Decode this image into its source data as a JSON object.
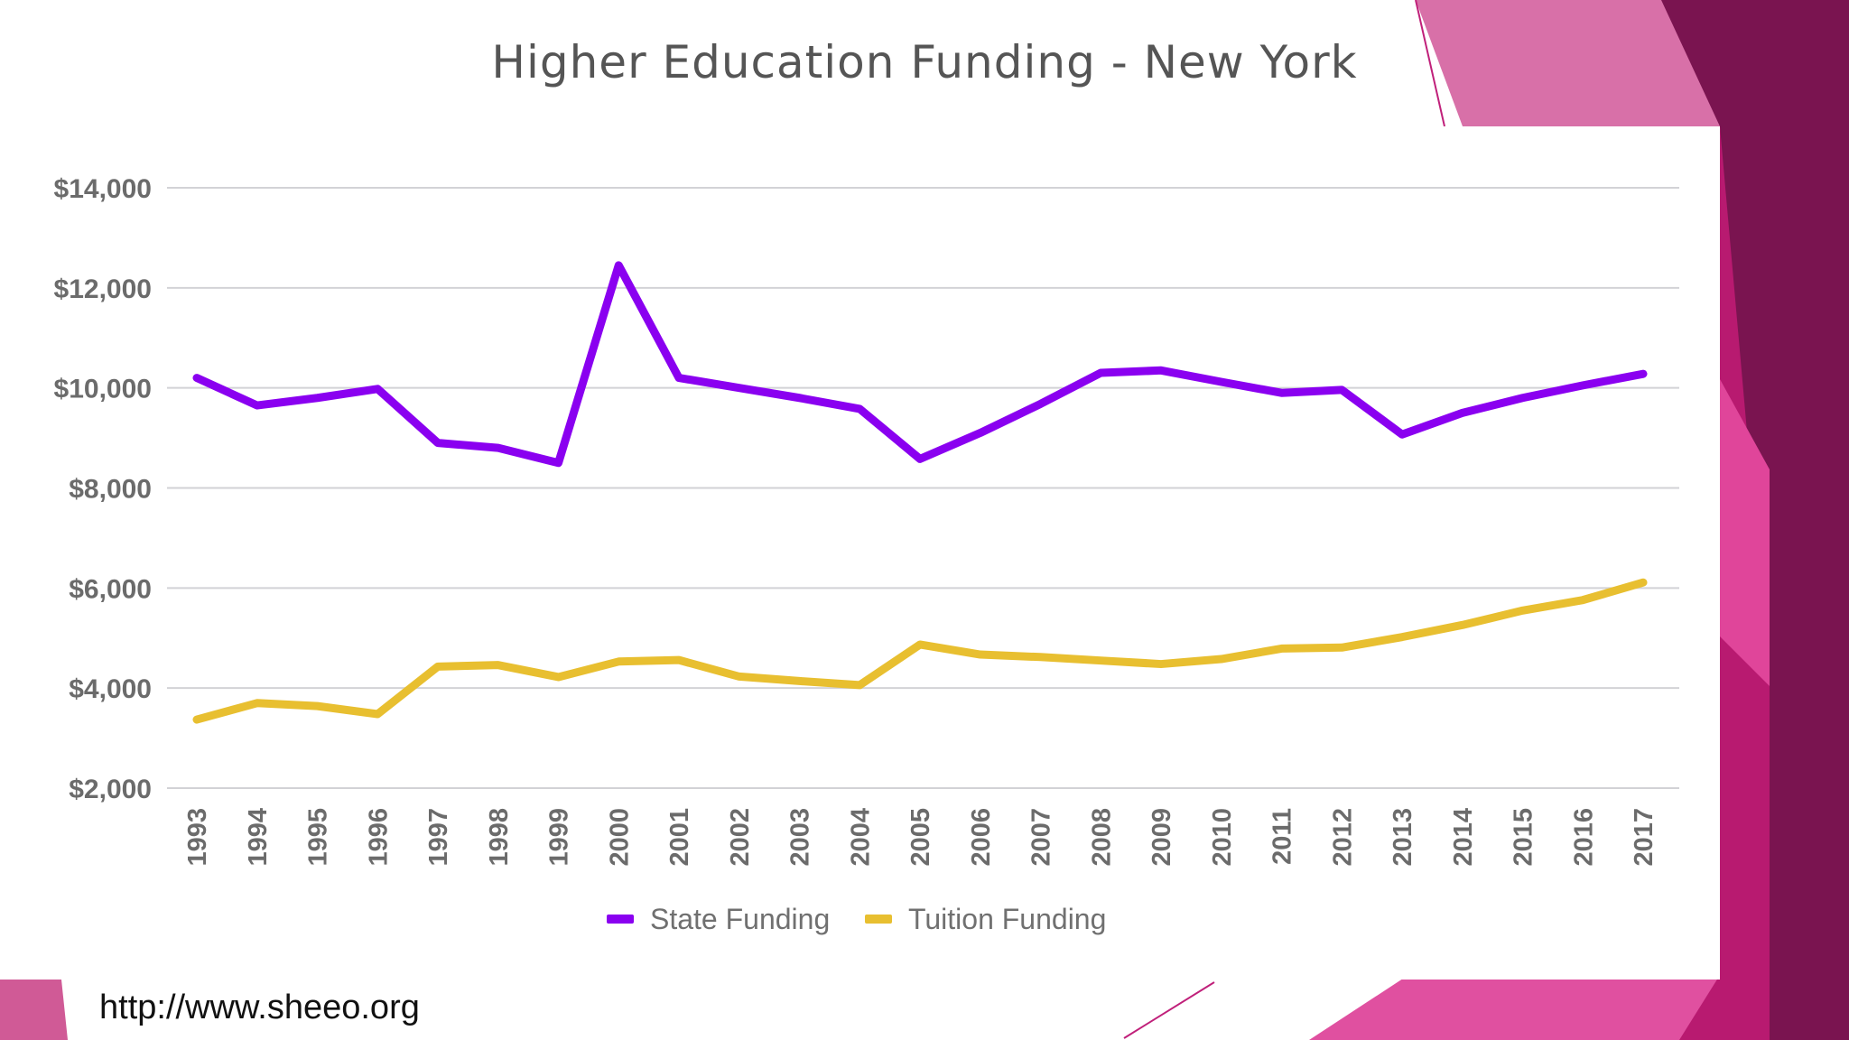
{
  "slide": {
    "title": "Higher Education Funding - New York",
    "footer_url": "http://www.sheeo.org"
  },
  "colors": {
    "state": "#8a00f0",
    "tuition": "#e8bf30",
    "grid": "#d2d2d6",
    "tick_text": "#6b6b6b",
    "legend_text": "#707070",
    "deco_pink": "#d870a8",
    "deco_magenta": "#c0207a",
    "deco_dark": "#7a1450"
  },
  "chart_data": {
    "type": "line",
    "x": [
      "1993",
      "1994",
      "1995",
      "1996",
      "1997",
      "1998",
      "1999",
      "2000",
      "2001",
      "2002",
      "2003",
      "2004",
      "2005",
      "2006",
      "2007",
      "2008",
      "2009",
      "2010",
      "2011",
      "2012",
      "2013",
      "2014",
      "2015",
      "2016",
      "2017"
    ],
    "series": [
      {
        "name": "State Funding",
        "values": [
          10200,
          9650,
          9800,
          9980,
          8900,
          8800,
          8500,
          12450,
          10200,
          10000,
          9800,
          9580,
          8580,
          9100,
          9680,
          10300,
          10350,
          10120,
          9900,
          9960,
          9070,
          9500,
          9800,
          10050,
          10280
        ]
      },
      {
        "name": "Tuition Funding",
        "values": [
          3370,
          3700,
          3640,
          3480,
          4430,
          4460,
          4220,
          4530,
          4560,
          4230,
          4140,
          4060,
          4870,
          4670,
          4620,
          4550,
          4480,
          4580,
          4790,
          4810,
          5020,
          5260,
          5550,
          5760,
          6110
        ]
      }
    ],
    "yticks": [
      "$14,000",
      "$12,000",
      "$10,000",
      "$8,000",
      "$6,000",
      "$4,000",
      "$2,000"
    ],
    "ylim": [
      2000,
      14000
    ],
    "grid": true,
    "legend_position": "bottom-center"
  }
}
